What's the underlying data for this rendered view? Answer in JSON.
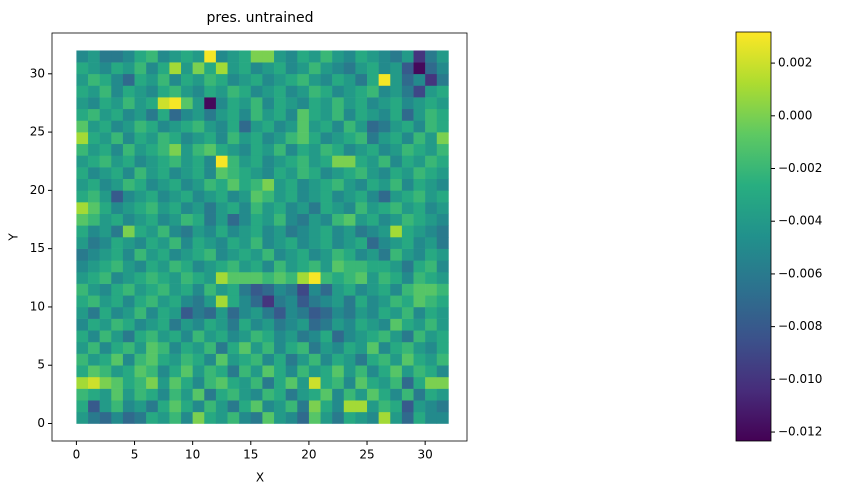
{
  "chart_data": {
    "type": "heatmap",
    "title": "pres. untrained",
    "x_label": "X",
    "y_label": "Y",
    "x": [
      0,
      1,
      2,
      3,
      4,
      5,
      6,
      7,
      8,
      9,
      10,
      11,
      12,
      13,
      14,
      15,
      16,
      17,
      18,
      19,
      20,
      21,
      22,
      23,
      24,
      25,
      26,
      27,
      28,
      29,
      30,
      31,
      32
    ],
    "y": [
      0,
      1,
      2,
      3,
      4,
      5,
      6,
      7,
      8,
      9,
      10,
      11,
      12,
      13,
      14,
      15,
      16,
      17,
      18,
      19,
      20,
      21,
      22,
      23,
      24,
      25,
      26,
      27,
      28,
      29,
      30,
      31,
      32
    ],
    "xlim": [
      -2.1,
      33.6
    ],
    "ylim": [
      -1.5,
      33.5
    ],
    "xticks": [
      0,
      5,
      10,
      15,
      20,
      25,
      30
    ],
    "yticks": [
      0,
      5,
      10,
      15,
      20,
      25,
      30
    ],
    "colormap": "viridis",
    "clim": [
      -0.01234,
      0.00318
    ],
    "cticks": [
      {
        "value": 0.002,
        "label": "0.002"
      },
      {
        "value": 0,
        "label": "0.000"
      },
      {
        "value": -0.002,
        "label": "−0.002"
      },
      {
        "value": -0.004,
        "label": "−0.004"
      },
      {
        "value": -0.006,
        "label": "−0.006"
      },
      {
        "value": -0.008,
        "label": "−0.008"
      },
      {
        "value": -0.01,
        "label": "−0.010"
      },
      {
        "value": -0.012,
        "label": "−0.012"
      }
    ],
    "values": [
      [
        -0.004,
        -0.006,
        -0.007,
        -0.005,
        -0.007,
        -0.006,
        -0.003,
        -0.004,
        -0.002,
        -0.005,
        0.0,
        -0.003,
        -0.004,
        -0.002,
        -0.005,
        -0.006,
        -0.001,
        -0.004,
        -0.005,
        -0.007,
        -0.001,
        -0.004,
        -0.006,
        -0.003,
        -0.004,
        -0.005,
        0.001,
        -0.004,
        -0.007,
        -0.003,
        -0.005,
        -0.005
      ],
      [
        -0.003,
        -0.008,
        -0.004,
        -0.002,
        -0.005,
        -0.004,
        -0.006,
        -0.003,
        -0.001,
        -0.003,
        -0.005,
        -0.002,
        -0.004,
        -0.006,
        -0.003,
        -0.001,
        -0.005,
        -0.004,
        -0.002,
        -0.006,
        0.0,
        -0.003,
        -0.005,
        0.001,
        0.001,
        -0.004,
        -0.002,
        -0.003,
        -0.008,
        -0.004,
        -0.005,
        -0.006
      ],
      [
        -0.002,
        -0.003,
        -0.004,
        -0.001,
        -0.004,
        -0.002,
        -0.003,
        -0.005,
        -0.002,
        -0.004,
        -0.001,
        -0.006,
        -0.003,
        -0.002,
        -0.004,
        -0.005,
        -0.002,
        -0.003,
        -0.006,
        -0.004,
        -0.003,
        -0.001,
        -0.005,
        -0.002,
        -0.004,
        -0.001,
        -0.003,
        -0.005,
        -0.002,
        -0.006,
        -0.003,
        -0.004
      ],
      [
        0.001,
        0.002,
        0.0,
        -0.001,
        -0.003,
        -0.002,
        0.0,
        -0.004,
        -0.001,
        -0.003,
        -0.005,
        -0.002,
        -0.001,
        -0.003,
        -0.004,
        -0.002,
        -0.006,
        -0.003,
        -0.001,
        -0.004,
        0.002,
        -0.003,
        -0.002,
        -0.005,
        -0.001,
        -0.003,
        -0.004,
        -0.002,
        -0.007,
        -0.003,
        0.0,
        0.0
      ],
      [
        -0.003,
        -0.001,
        -0.002,
        -0.004,
        -0.003,
        -0.001,
        -0.002,
        -0.005,
        -0.003,
        -0.001,
        -0.004,
        -0.002,
        -0.003,
        -0.006,
        -0.002,
        -0.004,
        -0.001,
        -0.003,
        -0.005,
        -0.002,
        -0.004,
        -0.003,
        -0.001,
        -0.004,
        -0.002,
        -0.005,
        -0.003,
        -0.001,
        -0.004,
        -0.002,
        -0.003,
        -0.005
      ],
      [
        -0.002,
        -0.004,
        -0.003,
        -0.001,
        -0.005,
        -0.002,
        -0.001,
        -0.003,
        -0.004,
        -0.002,
        -0.003,
        -0.005,
        -0.001,
        -0.004,
        -0.003,
        -0.002,
        -0.005,
        -0.003,
        -0.006,
        -0.004,
        -0.002,
        -0.005,
        -0.003,
        -0.004,
        -0.006,
        -0.003,
        -0.002,
        -0.004,
        -0.001,
        -0.003,
        -0.004,
        -0.002
      ],
      [
        -0.004,
        -0.002,
        -0.005,
        -0.003,
        -0.002,
        -0.004,
        -0.001,
        -0.002,
        -0.005,
        -0.003,
        -0.004,
        -0.002,
        -0.006,
        -0.003,
        -0.001,
        -0.004,
        -0.002,
        -0.005,
        -0.003,
        -0.002,
        -0.006,
        -0.004,
        -0.005,
        -0.003,
        -0.004,
        -0.001,
        -0.005,
        -0.003,
        -0.002,
        -0.004,
        -0.005,
        -0.003
      ],
      [
        -0.003,
        -0.005,
        -0.002,
        -0.004,
        -0.006,
        -0.003,
        -0.002,
        -0.004,
        -0.003,
        -0.005,
        -0.002,
        -0.004,
        -0.003,
        -0.005,
        -0.004,
        -0.002,
        -0.003,
        -0.005,
        -0.004,
        -0.006,
        -0.005,
        -0.003,
        -0.007,
        -0.005,
        -0.004,
        -0.003,
        -0.002,
        -0.004,
        -0.006,
        -0.002,
        -0.004,
        -0.003
      ],
      [
        -0.005,
        -0.003,
        -0.004,
        -0.002,
        -0.003,
        -0.005,
        -0.004,
        -0.003,
        -0.006,
        -0.004,
        -0.005,
        -0.003,
        -0.004,
        -0.006,
        -0.003,
        -0.005,
        -0.004,
        -0.006,
        -0.005,
        -0.004,
        -0.007,
        -0.006,
        -0.004,
        -0.005,
        -0.003,
        -0.004,
        -0.005,
        -0.001,
        -0.003,
        -0.004,
        -0.002,
        -0.004
      ],
      [
        -0.004,
        -0.006,
        -0.003,
        -0.005,
        -0.004,
        -0.002,
        -0.005,
        -0.003,
        -0.004,
        -0.008,
        -0.006,
        -0.007,
        -0.004,
        -0.007,
        -0.005,
        -0.004,
        -0.006,
        -0.008,
        -0.005,
        -0.006,
        -0.008,
        -0.007,
        -0.005,
        -0.006,
        -0.004,
        -0.005,
        -0.003,
        -0.004,
        -0.002,
        -0.005,
        -0.003,
        -0.004
      ],
      [
        -0.003,
        -0.002,
        -0.004,
        -0.003,
        -0.005,
        -0.003,
        -0.002,
        -0.004,
        -0.003,
        -0.005,
        -0.006,
        -0.004,
        0.001,
        -0.003,
        -0.005,
        -0.007,
        -0.01,
        -0.006,
        -0.005,
        -0.008,
        -0.006,
        -0.005,
        -0.004,
        -0.006,
        -0.003,
        -0.005,
        -0.004,
        -0.002,
        -0.003,
        -0.001,
        -0.002,
        -0.003
      ],
      [
        -0.002,
        -0.004,
        -0.005,
        -0.003,
        -0.002,
        -0.004,
        -0.003,
        -0.002,
        -0.004,
        -0.003,
        -0.005,
        -0.002,
        -0.004,
        -0.003,
        -0.006,
        -0.008,
        -0.007,
        -0.005,
        -0.006,
        -0.009,
        -0.005,
        -0.007,
        -0.004,
        -0.003,
        -0.005,
        -0.004,
        -0.003,
        -0.005,
        -0.002,
        -0.001,
        -0.001,
        -0.002
      ],
      [
        -0.004,
        -0.003,
        -0.002,
        -0.005,
        -0.004,
        -0.003,
        -0.002,
        -0.003,
        -0.004,
        -0.002,
        -0.003,
        -0.004,
        0.001,
        -0.001,
        -0.001,
        -0.001,
        -0.002,
        -0.001,
        -0.002,
        0.001,
        0.003,
        -0.002,
        -0.003,
        -0.002,
        -0.001,
        -0.004,
        -0.002,
        -0.003,
        -0.005,
        -0.002,
        -0.003,
        -0.004
      ],
      [
        -0.005,
        -0.004,
        -0.003,
        -0.002,
        -0.004,
        -0.005,
        -0.003,
        -0.004,
        -0.002,
        -0.003,
        -0.005,
        -0.004,
        -0.003,
        -0.002,
        -0.004,
        -0.003,
        -0.005,
        -0.002,
        -0.004,
        -0.003,
        -0.002,
        -0.004,
        -0.001,
        -0.002,
        -0.002,
        -0.003,
        -0.003,
        -0.004,
        -0.006,
        -0.003,
        -0.002,
        -0.005
      ],
      [
        -0.006,
        -0.005,
        -0.004,
        -0.003,
        -0.005,
        -0.002,
        -0.004,
        -0.003,
        -0.005,
        -0.004,
        -0.003,
        -0.002,
        -0.005,
        -0.004,
        -0.003,
        -0.004,
        -0.002,
        -0.005,
        -0.004,
        -0.003,
        -0.005,
        -0.004,
        -0.002,
        -0.003,
        -0.005,
        -0.004,
        -0.006,
        -0.002,
        -0.004,
        -0.005,
        -0.003,
        -0.004
      ],
      [
        -0.004,
        -0.006,
        -0.005,
        -0.003,
        -0.004,
        -0.005,
        -0.003,
        -0.004,
        -0.002,
        -0.005,
        -0.003,
        -0.004,
        -0.005,
        -0.003,
        -0.004,
        -0.002,
        -0.005,
        -0.004,
        -0.003,
        -0.005,
        -0.004,
        -0.003,
        -0.005,
        -0.004,
        -0.003,
        -0.007,
        -0.005,
        -0.004,
        -0.003,
        -0.005,
        -0.004,
        -0.006
      ],
      [
        -0.003,
        -0.005,
        -0.004,
        -0.006,
        0.0,
        -0.003,
        -0.004,
        -0.002,
        -0.005,
        -0.006,
        -0.004,
        -0.005,
        -0.003,
        -0.005,
        -0.004,
        -0.003,
        -0.005,
        -0.004,
        -0.006,
        -0.005,
        -0.004,
        -0.003,
        -0.005,
        -0.004,
        -0.006,
        -0.005,
        -0.004,
        0.001,
        -0.003,
        -0.004,
        -0.005,
        -0.006
      ],
      [
        -0.001,
        -0.002,
        -0.004,
        -0.003,
        -0.005,
        -0.004,
        -0.003,
        -0.005,
        -0.004,
        -0.002,
        -0.003,
        -0.006,
        -0.004,
        -0.007,
        -0.005,
        -0.003,
        -0.004,
        -0.002,
        -0.005,
        -0.006,
        -0.004,
        -0.005,
        -0.002,
        -0.001,
        -0.004,
        -0.003,
        -0.005,
        -0.004,
        -0.002,
        -0.003,
        -0.004,
        -0.005
      ],
      [
        0.001,
        -0.001,
        -0.003,
        -0.005,
        -0.004,
        -0.003,
        -0.002,
        -0.004,
        -0.003,
        -0.005,
        -0.004,
        -0.006,
        -0.004,
        -0.003,
        -0.005,
        -0.002,
        -0.004,
        -0.003,
        -0.005,
        -0.004,
        -0.006,
        -0.003,
        -0.004,
        -0.005,
        -0.002,
        -0.004,
        -0.003,
        -0.002,
        -0.004,
        -0.003,
        -0.005,
        -0.004
      ],
      [
        -0.003,
        -0.002,
        -0.004,
        -0.008,
        -0.005,
        -0.004,
        -0.003,
        -0.005,
        -0.004,
        -0.003,
        -0.005,
        -0.004,
        -0.003,
        -0.005,
        -0.004,
        -0.001,
        -0.002,
        -0.004,
        -0.003,
        -0.005,
        -0.004,
        -0.003,
        -0.005,
        -0.004,
        -0.003,
        -0.005,
        -0.007,
        -0.004,
        -0.003,
        -0.002,
        -0.004,
        -0.003
      ],
      [
        -0.004,
        -0.003,
        -0.005,
        -0.004,
        -0.002,
        -0.003,
        -0.005,
        -0.004,
        -0.003,
        -0.005,
        -0.004,
        -0.002,
        -0.003,
        -0.001,
        -0.003,
        -0.002,
        0.0,
        -0.004,
        -0.003,
        -0.005,
        -0.004,
        -0.003,
        -0.002,
        -0.004,
        -0.005,
        -0.003,
        -0.004,
        -0.002,
        -0.005,
        -0.003,
        -0.004,
        -0.005
      ],
      [
        -0.003,
        -0.005,
        -0.004,
        -0.003,
        -0.005,
        -0.002,
        -0.004,
        -0.003,
        -0.005,
        -0.004,
        -0.003,
        -0.005,
        -0.001,
        -0.002,
        -0.003,
        -0.004,
        -0.005,
        -0.003,
        -0.004,
        -0.002,
        -0.003,
        -0.005,
        -0.004,
        -0.003,
        -0.002,
        -0.004,
        -0.005,
        -0.003,
        -0.004,
        -0.002,
        -0.003,
        -0.004
      ],
      [
        -0.004,
        -0.003,
        -0.002,
        -0.004,
        -0.003,
        -0.005,
        -0.004,
        -0.003,
        -0.002,
        -0.004,
        -0.003,
        -0.005,
        0.003,
        -0.002,
        -0.004,
        -0.003,
        -0.005,
        -0.004,
        -0.003,
        -0.002,
        -0.004,
        -0.003,
        0.0,
        0.0,
        -0.003,
        -0.004,
        -0.002,
        -0.005,
        -0.003,
        -0.004,
        -0.002,
        -0.003
      ],
      [
        -0.002,
        -0.004,
        -0.003,
        -0.005,
        -0.002,
        -0.004,
        -0.003,
        -0.002,
        0.0,
        -0.004,
        -0.002,
        -0.001,
        -0.003,
        -0.004,
        -0.005,
        -0.003,
        -0.004,
        -0.002,
        -0.005,
        -0.003,
        -0.004,
        -0.002,
        -0.003,
        -0.005,
        -0.004,
        -0.003,
        -0.005,
        -0.004,
        -0.002,
        -0.003,
        -0.004,
        -0.002
      ],
      [
        0.001,
        -0.003,
        -0.004,
        -0.002,
        -0.005,
        -0.003,
        -0.004,
        -0.002,
        -0.003,
        -0.005,
        -0.004,
        -0.003,
        -0.005,
        -0.002,
        -0.004,
        -0.003,
        -0.005,
        -0.004,
        -0.002,
        -0.001,
        -0.003,
        -0.005,
        -0.004,
        -0.003,
        -0.002,
        -0.006,
        -0.004,
        -0.003,
        -0.005,
        -0.002,
        -0.004,
        0.0
      ],
      [
        -0.001,
        -0.004,
        -0.003,
        -0.005,
        -0.004,
        -0.002,
        -0.003,
        -0.005,
        -0.004,
        -0.003,
        -0.002,
        -0.004,
        -0.005,
        -0.003,
        -0.007,
        -0.004,
        -0.003,
        -0.005,
        -0.004,
        -0.001,
        -0.004,
        -0.003,
        -0.005,
        -0.002,
        -0.004,
        -0.007,
        -0.006,
        -0.004,
        -0.003,
        -0.005,
        -0.002,
        -0.003
      ],
      [
        -0.003,
        -0.002,
        -0.004,
        -0.003,
        -0.005,
        -0.004,
        -0.006,
        -0.003,
        -0.007,
        -0.005,
        -0.004,
        -0.006,
        -0.004,
        -0.003,
        -0.005,
        -0.002,
        -0.004,
        -0.003,
        -0.005,
        -0.001,
        -0.003,
        -0.004,
        -0.002,
        -0.005,
        -0.003,
        -0.004,
        -0.005,
        -0.003,
        -0.007,
        -0.004,
        -0.002,
        -0.003
      ],
      [
        -0.004,
        -0.005,
        -0.003,
        -0.004,
        -0.002,
        -0.004,
        -0.003,
        0.002,
        0.003,
        -0.001,
        -0.004,
        -0.012,
        -0.005,
        -0.003,
        -0.004,
        -0.002,
        -0.005,
        -0.003,
        -0.004,
        -0.005,
        -0.003,
        -0.004,
        -0.002,
        -0.004,
        -0.003,
        -0.005,
        -0.004,
        -0.003,
        -0.005,
        -0.004,
        -0.003,
        -0.004
      ],
      [
        -0.003,
        -0.004,
        -0.002,
        -0.005,
        -0.003,
        -0.004,
        -0.005,
        -0.003,
        -0.002,
        -0.004,
        -0.005,
        -0.003,
        -0.004,
        -0.002,
        -0.003,
        -0.005,
        -0.004,
        -0.003,
        -0.005,
        -0.004,
        -0.002,
        -0.003,
        -0.005,
        -0.004,
        -0.003,
        -0.002,
        -0.005,
        -0.004,
        -0.006,
        -0.009,
        -0.004,
        -0.003
      ],
      [
        -0.004,
        -0.002,
        -0.003,
        -0.005,
        -0.007,
        -0.003,
        -0.004,
        -0.002,
        -0.005,
        -0.003,
        -0.004,
        -0.002,
        -0.003,
        -0.005,
        -0.004,
        -0.003,
        -0.005,
        -0.004,
        -0.003,
        -0.002,
        -0.004,
        -0.005,
        -0.003,
        -0.004,
        -0.006,
        -0.003,
        0.003,
        -0.004,
        -0.007,
        -0.005,
        -0.01,
        -0.006
      ],
      [
        -0.003,
        -0.004,
        -0.005,
        -0.003,
        -0.004,
        -0.002,
        -0.005,
        -0.003,
        0.001,
        -0.004,
        0.0,
        -0.003,
        0.001,
        -0.004,
        -0.003,
        -0.005,
        -0.004,
        -0.003,
        -0.005,
        -0.004,
        -0.002,
        -0.004,
        -0.005,
        -0.006,
        -0.004,
        -0.003,
        -0.005,
        -0.004,
        -0.008,
        -0.012,
        -0.007,
        -0.005
      ],
      [
        -0.005,
        -0.004,
        -0.006,
        -0.006,
        -0.005,
        -0.003,
        -0.002,
        -0.005,
        -0.004,
        -0.003,
        -0.004,
        0.003,
        -0.005,
        -0.004,
        -0.003,
        0.0,
        0.0,
        -0.004,
        -0.005,
        -0.003,
        -0.004,
        -0.002,
        -0.004,
        -0.005,
        -0.003,
        -0.004,
        -0.005,
        -0.006,
        -0.004,
        -0.01,
        -0.006,
        -0.004
      ]
    ]
  }
}
